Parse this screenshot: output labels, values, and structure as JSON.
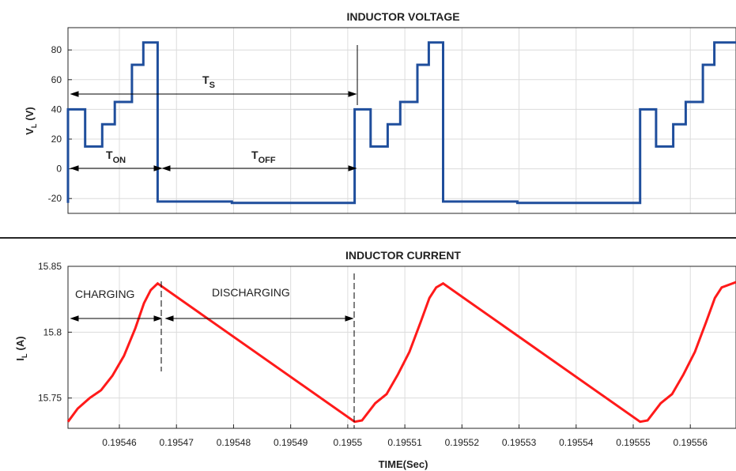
{
  "chart_data": [
    {
      "type": "line",
      "title": "INDUCTOR VOLTAGE",
      "ylabel_main": "V",
      "ylabel_sub": "L",
      "ylabel_unit": "(V)",
      "xlim": [
        0.195451,
        0.195568
      ],
      "ylim": [
        -30,
        95
      ],
      "yticks": [
        80,
        60,
        40,
        20,
        0,
        -20
      ],
      "ytick_labels": [
        "80",
        "60",
        "40",
        "20",
        "0",
        "-20"
      ],
      "xticks": [
        0.19546,
        0.19547,
        0.19548,
        0.19549,
        0.1955,
        0.19551,
        0.19552,
        0.19553,
        0.19554,
        0.19555,
        0.19556
      ],
      "grid": true,
      "color": "#1f4e9c",
      "series": [
        {
          "x": [
            0.195451,
            0.195451,
            0.1954513,
            0.1954513,
            0.195454,
            0.195454,
            0.195457,
            0.195457,
            0.1954592,
            0.1954592,
            0.1954622,
            0.1954622,
            0.1954642,
            0.1954642,
            0.1954667,
            0.1954667,
            0.1954797,
            0.1954797,
            0.1955012,
            0.1955012,
            0.195504,
            0.195504,
            0.195507,
            0.195507,
            0.1955092,
            0.1955092,
            0.1955122,
            0.1955122,
            0.1955142,
            0.1955142,
            0.1955167,
            0.1955167,
            0.1955297,
            0.1955297,
            0.1955512,
            0.1955512,
            0.195554,
            0.195554,
            0.195557,
            0.195557,
            0.1955592,
            0.1955592,
            0.1955622,
            0.1955622,
            0.1955642,
            0.1955642,
            0.195568
          ],
          "y": [
            -23,
            40,
            40,
            40,
            40,
            15,
            15,
            30,
            30,
            45,
            45,
            70,
            70,
            85,
            85,
            -22,
            -22,
            -23,
            -23,
            40,
            40,
            15,
            15,
            30,
            30,
            45,
            45,
            70,
            70,
            85,
            85,
            -22,
            -22,
            -23,
            -23,
            40,
            40,
            15,
            15,
            30,
            30,
            45,
            45,
            70,
            70,
            85,
            85
          ]
        }
      ],
      "annotations": {
        "ts_label": "T",
        "ts_sub": "S",
        "ton_label": "T",
        "ton_sub": "ON",
        "toff_label": "T",
        "toff_sub": "OFF"
      }
    },
    {
      "type": "line",
      "title": "INDUCTOR CURRENT",
      "ylabel_main": "I",
      "ylabel_sub": "L",
      "ylabel_unit": "(A)",
      "xlabel": "TIME(Sec)",
      "xlim": [
        0.195451,
        0.195568
      ],
      "ylim": [
        15.727,
        15.85
      ],
      "yticks": [
        15.85,
        15.8,
        15.75
      ],
      "ytick_labels": [
        "15.85",
        "15.8",
        "15.75"
      ],
      "xticks": [
        0.19546,
        0.19547,
        0.19548,
        0.19549,
        0.1955,
        0.19551,
        0.19552,
        0.19553,
        0.19554,
        0.19555,
        0.19556
      ],
      "xtick_labels": [
        "0.19546",
        "0.19547",
        "0.19548",
        "0.19549",
        "0.1955",
        "0.19551",
        "0.19552",
        "0.19553",
        "0.19554",
        "0.19555",
        "0.19556"
      ],
      "grid": true,
      "color": "#ff1a1a",
      "series": [
        {
          "x": [
            0.195451,
            0.1954527,
            0.1954548,
            0.1954568,
            0.1954588,
            0.1954608,
            0.1954628,
            0.1954643,
            0.1954655,
            0.1954667,
            0.1955012,
            0.1955025,
            0.1955048,
            0.1955068,
            0.1955088,
            0.1955108,
            0.1955128,
            0.1955143,
            0.1955155,
            0.1955167,
            0.1955512,
            0.1955525,
            0.1955548,
            0.1955568,
            0.1955588,
            0.1955608,
            0.1955628,
            0.1955643,
            0.1955655,
            0.195568
          ],
          "y": [
            15.732,
            15.742,
            15.75,
            15.756,
            15.767,
            15.782,
            15.803,
            15.822,
            15.832,
            15.837,
            15.732,
            15.733,
            15.746,
            15.753,
            15.768,
            15.785,
            15.808,
            15.826,
            15.834,
            15.837,
            15.732,
            15.733,
            15.746,
            15.753,
            15.768,
            15.785,
            15.808,
            15.826,
            15.834,
            15.838
          ]
        }
      ],
      "annotations": {
        "charging": "CHARGING",
        "discharging": "DISCHARGING"
      }
    }
  ]
}
